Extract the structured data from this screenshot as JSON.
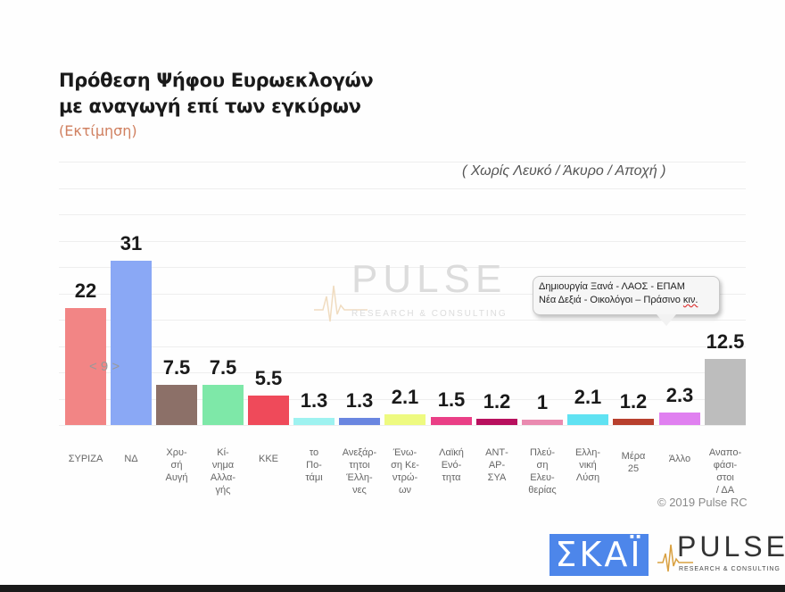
{
  "header": {
    "title_line1": "Πρόθεση Ψήφου Ευρωεκλογών",
    "title_line2": "με αναγωγή επί των εγκύρων",
    "subtitle": "(Εκτίμηση)",
    "note": "( Χωρίς Λευκό / Άκυρο / Αποχή )"
  },
  "watermark": {
    "brand": "PULSE",
    "tagline": "RESEARCH & CONSULTING"
  },
  "mid_label": "< 9 >",
  "callout": {
    "line1": "Δημιουργία Ξανά - ΛΑΟΣ - ΕΠΑΜ",
    "line2_prefix": "Νέα Δεξιά - Οικολόγοι – Πράσινο ",
    "line2_suffix": "κιν."
  },
  "footer": {
    "copyright": "© 2019 Pulse RC",
    "skai_logo": "ΣΚΑΪ",
    "pulse_logo": "PULSE",
    "pulse_tagline": "RESEARCH & CONSULTING"
  },
  "chart_data": {
    "type": "bar",
    "title": "Πρόθεση Ψήφου Ευρωεκλογών με αναγωγή επί των εγκύρων",
    "subtitle": "(Εκτίμηση)",
    "annotation": "( Χωρίς Λευκό / Άκυρο / Αποχή )",
    "xlabel": "",
    "ylabel": "",
    "ylim": [
      0,
      35
    ],
    "grid": true,
    "legend": "none",
    "categories": [
      "ΣΥΡΙΖΑ",
      "ΝΔ",
      "Χρυσή Αυγή",
      "Κίνημα Αλλαγής",
      "ΚΚΕ",
      "το Ποτάμι",
      "Ανεξάρτητοι Έλληνες",
      "Ένωση Κεντρώων",
      "Λαϊκή Ενότητα",
      "ΑΝΤΑΡΣΥΑ",
      "Πλεύση Ελευθερίας",
      "Ελληνική Λύση",
      "Μέρα 25",
      "Άλλο",
      "Αναποφάσιστοι / ΔΑ"
    ],
    "category_labels": [
      "ΣΥΡΙΖΑ",
      "ΝΔ",
      "Χρυ-\nσή\nΑυγή",
      "Κί-\nνημα\nΑλλα-\nγής",
      "ΚΚΕ",
      "το\nΠο-\nτάμι",
      "Ανεξάρ-\nτητοι\nΈλλη-\nνες",
      "Ένω-\nση Κε-\nντρώ-\nων",
      "Λαϊκή\nΕνό-\nτητα",
      "ΑΝΤ-\nΑΡ-\nΣΥΑ",
      "Πλεύ-\nση\nΕλευ-\nθερίας",
      "Ελλη-\nνική\nΛύση",
      "Μέρα\n25",
      "Άλλο",
      "Αναπο-\nφάσι-\nστοι\n/ ΔΑ"
    ],
    "values": [
      22,
      31,
      7.5,
      7.5,
      5.5,
      1.3,
      1.3,
      2.1,
      1.5,
      1.2,
      1,
      2.1,
      1.2,
      2.3,
      12.5
    ],
    "value_labels": [
      "22",
      "31",
      "7.5",
      "7.5",
      "5.5",
      "1.3",
      "1.3",
      "2.1",
      "1.5",
      "1.2",
      "1",
      "2.1",
      "1.2",
      "2.3",
      "12.5"
    ],
    "colors": [
      "#f28585",
      "#8aa8f5",
      "#8c7068",
      "#7ee8a8",
      "#ef4a5a",
      "#9ef2f0",
      "#6a86e0",
      "#eefa80",
      "#ea3f86",
      "#b8105e",
      "#ea8ab0",
      "#60e2f2",
      "#b8402e",
      "#e080f0",
      "#bdbdbd"
    ]
  }
}
